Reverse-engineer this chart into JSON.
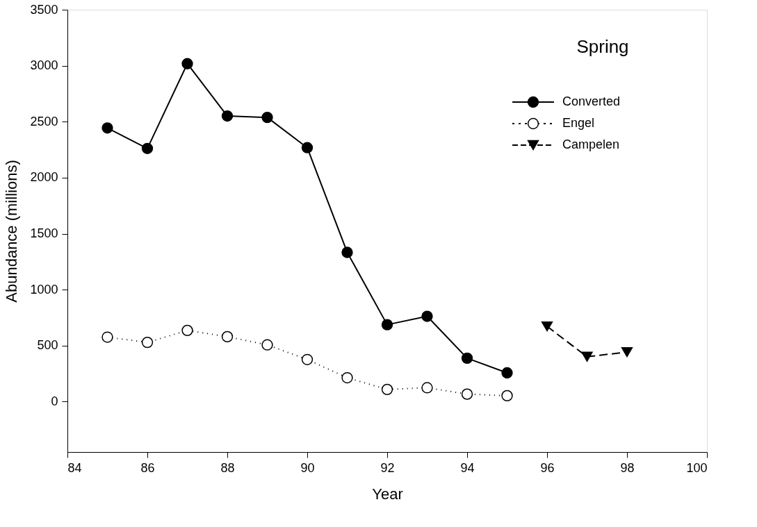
{
  "chart_data": {
    "type": "line",
    "xlabel": "Year",
    "ylabel": "Abundance (millions)",
    "annotations": [
      "Spring"
    ],
    "xlim": [
      84,
      100
    ],
    "xticks": [
      84,
      86,
      88,
      90,
      92,
      94,
      96,
      98,
      100
    ],
    "ylim": [
      -450,
      3500
    ],
    "yticks": [
      0,
      500,
      1000,
      1500,
      2000,
      2500,
      3000,
      3500
    ],
    "grid": false,
    "legend": "top right",
    "series": [
      {
        "name": "Converted",
        "color": "#000000",
        "marker": "circle",
        "line_style": "solid",
        "x": [
          85,
          86,
          87,
          88,
          89,
          90,
          91,
          92,
          93,
          94,
          95
        ],
        "values": [
          2444,
          2261,
          3018,
          2551,
          2538,
          2268,
          1333,
          687,
          762,
          388,
          257
        ]
      },
      {
        "name": "Engel",
        "color": "#000000",
        "marker": "circle",
        "line_style": "dotted",
        "x": [
          85,
          86,
          87,
          88,
          89,
          90,
          91,
          92,
          93,
          94,
          95
        ],
        "values": [
          576,
          529,
          636,
          580,
          507,
          376,
          213,
          109,
          124,
          67,
          53
        ]
      },
      {
        "name": "Campelen",
        "color": "#000000",
        "marker": "triangle",
        "line_style": "dashed",
        "x": [
          96,
          97,
          98
        ],
        "values": [
          672,
          401,
          442
        ]
      }
    ]
  }
}
